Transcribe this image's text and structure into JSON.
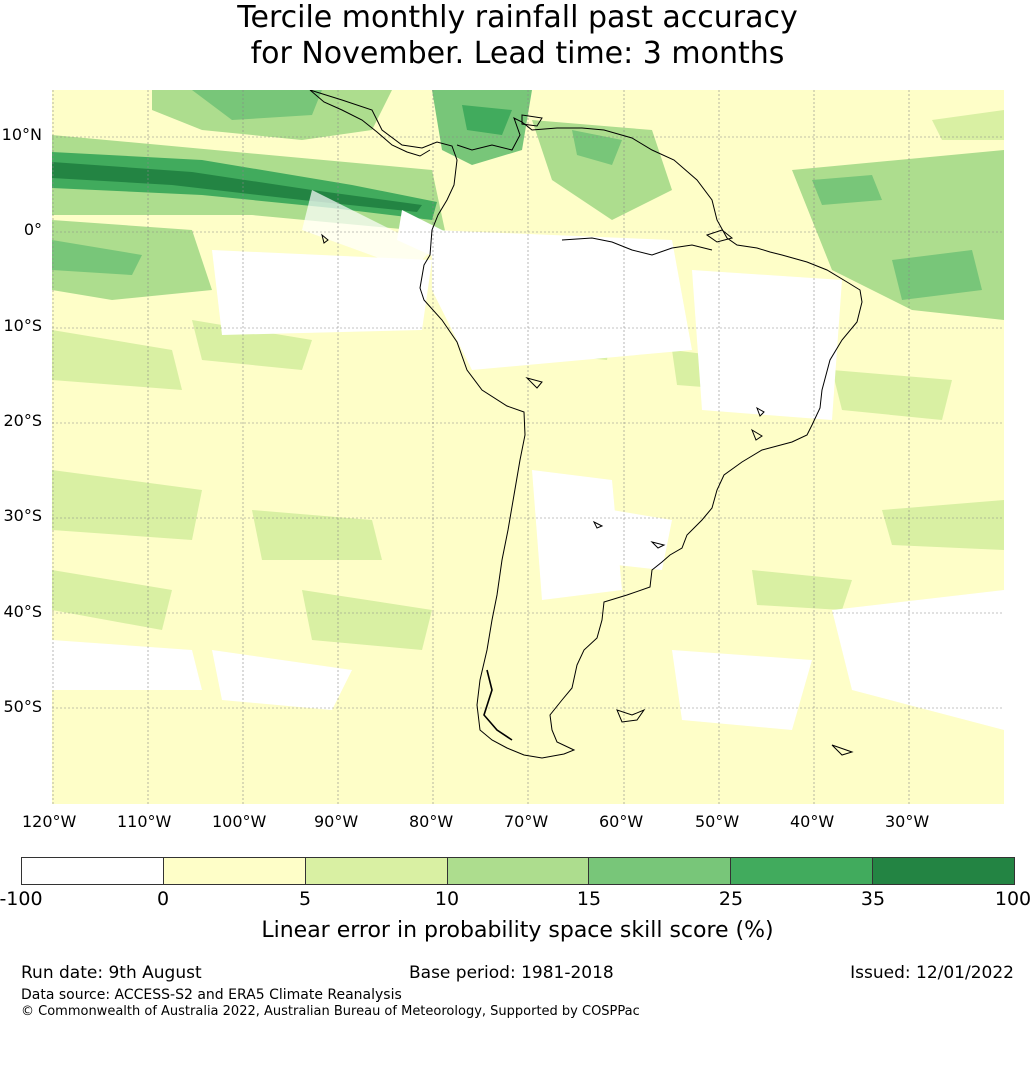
{
  "title_line1": "Tercile monthly rainfall past accuracy",
  "title_line2": "for November. Lead time: 3 months",
  "latitude_labels": [
    "10°N",
    "0°",
    "10°S",
    "20°S",
    "30°S",
    "40°S",
    "50°S"
  ],
  "longitude_labels": [
    "120°W",
    "110°W",
    "100°W",
    "90°W",
    "80°W",
    "70°W",
    "60°W",
    "50°W",
    "40°W",
    "30°W"
  ],
  "colorbar": {
    "ticks": [
      "-100",
      "0",
      "5",
      "10",
      "15",
      "25",
      "35",
      "100"
    ],
    "colors": [
      "#ffffff",
      "#fefec8",
      "#d9f0a3",
      "#addd8e",
      "#78c679",
      "#41ab5d",
      "#238443"
    ],
    "label": "Linear error in probability space skill score (%)"
  },
  "footer": {
    "run_date": "Run date: 9th August",
    "base_period": "Base period: 1981-2018",
    "issued": "Issued: 12/01/2022",
    "data_source": "Data source: ACCESS-S2 and ERA5 Climate Reanalysis",
    "copyright": "© Commonwealth of Australia 2022, Australian Bureau of Meteorology, Supported by COSPPac"
  }
}
